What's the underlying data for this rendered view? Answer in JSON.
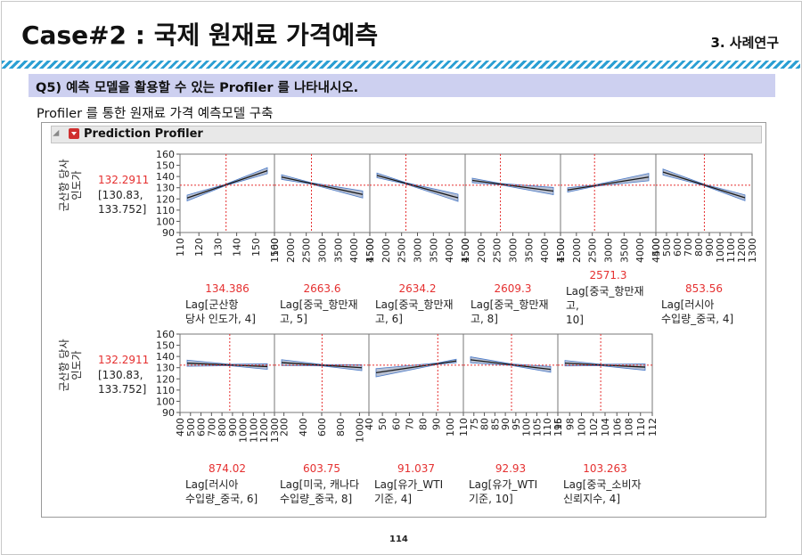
{
  "page": {
    "title": "Case#2 : 국제 원재료 가격예측",
    "section": "3. 사례연구",
    "question": "Q5) 예측 모델을 활용할 수 있는 Profiler 를 나타내시오.",
    "subtitle": "Profiler 를 통한 원재료 가격 예측모델 구축",
    "page_number": "114"
  },
  "profiler": {
    "title": "Prediction Profiler"
  },
  "chart_data": {
    "type": "line",
    "response": {
      "label": "군산항 당사 인도가",
      "value": "132.2911",
      "ci": "[130.83, 133.752]",
      "ylim": [
        90,
        160
      ],
      "yticks": [
        "160",
        "150",
        "140",
        "130",
        "120",
        "110",
        "100",
        "90"
      ]
    },
    "colors": {
      "line": "#1a1a1a",
      "band": "#b8c0d2",
      "band_edge": "#4a7ac8",
      "crosshair": "#e53030"
    },
    "factors": [
      {
        "label": [
          "Lag[군산항",
          "당사 인도가, 4]"
        ],
        "value": "134.386",
        "setting": 134.386,
        "xlim": [
          110,
          160
        ],
        "xticks": [
          "110",
          "120",
          "130",
          "140",
          "150",
          "160"
        ],
        "y": [
          120.8,
          145.2
        ],
        "row": 0
      },
      {
        "label": [
          "Lag[중국_항만재",
          "고, 5]"
        ],
        "value": "2663.6",
        "setting": 2663.6,
        "xlim": [
          1500,
          4500
        ],
        "xticks": [
          "1500",
          "2000",
          "2500",
          "3000",
          "3500",
          "4000",
          "4500"
        ],
        "y": [
          139.5,
          124.0
        ],
        "row": 0
      },
      {
        "label": [
          "Lag[중국_항만재",
          "고, 6]"
        ],
        "value": "2634.2",
        "setting": 2634.2,
        "xlim": [
          1500,
          4500
        ],
        "xticks": [
          "1500",
          "2000",
          "2500",
          "3000",
          "3500",
          "4000",
          "4500"
        ],
        "y": [
          141.0,
          121.0
        ],
        "row": 0
      },
      {
        "label": [
          "Lag[중국_항만재",
          "고, 8]"
        ],
        "value": "2609.3",
        "setting": 2609.3,
        "xlim": [
          1500,
          4500
        ],
        "xticks": [
          "1500",
          "2000",
          "2500",
          "3000",
          "3500",
          "4000",
          "4500"
        ],
        "y": [
          136.5,
          127.0
        ],
        "row": 0
      },
      {
        "label": [
          "Lag[중국_항만재",
          "고,",
          "10]"
        ],
        "value": "2571.3",
        "setting": 2571.3,
        "xlim": [
          1500,
          4500
        ],
        "xticks": [
          "1500",
          "2000",
          "2500",
          "3000",
          "3500",
          "4000",
          "4500"
        ],
        "y": [
          128.0,
          139.5
        ],
        "row": 0
      },
      {
        "label": [
          "Lag[러시아",
          "수입량_중국, 4]"
        ],
        "value": "853.56",
        "setting": 853.56,
        "xlim": [
          400,
          1300
        ],
        "xticks": [
          "400",
          "500",
          "600",
          "700",
          "800",
          "900",
          "1000",
          "1100",
          "1200",
          "1300"
        ],
        "y": [
          144.0,
          121.0
        ],
        "row": 0
      },
      {
        "label": [
          "Lag[러시아",
          "수입량_중국, 6]"
        ],
        "value": "874.02",
        "setting": 874.02,
        "xlim": [
          400,
          1300
        ],
        "xticks": [
          "400",
          "500",
          "600",
          "700",
          "800",
          "900",
          "1000",
          "1100",
          "1200",
          "1300"
        ],
        "y": [
          134.0,
          131.0
        ],
        "row": 1
      },
      {
        "label": [
          "Lag[미국, 캐나다",
          "수입량_중국, 8]"
        ],
        "value": "603.75",
        "setting": 603.75,
        "xlim": [
          100,
          1100
        ],
        "xticks": [
          "200",
          "400",
          "600",
          "800",
          "1000"
        ],
        "y": [
          134.5,
          130.0
        ],
        "row": 1
      },
      {
        "label": [
          "Lag[유가_WTI",
          "기준, 4]"
        ],
        "value": "91.037",
        "setting": 91.037,
        "xlim": [
          40,
          110
        ],
        "xticks": [
          "40",
          "50",
          "60",
          "70",
          "80",
          "90",
          "100",
          "110"
        ],
        "y": [
          125.5,
          136.0
        ],
        "row": 1
      },
      {
        "label": [
          "Lag[유가_WTI",
          "기준, 10]"
        ],
        "value": "92.93",
        "setting": 92.93,
        "xlim": [
          70,
          115
        ],
        "xticks": [
          "75",
          "80",
          "85",
          "90",
          "95",
          "100",
          "105",
          "110",
          "115"
        ],
        "y": [
          137.0,
          128.5
        ],
        "row": 1
      },
      {
        "label": [
          "Lag[중국_소비자",
          "신뢰지수, 4]"
        ],
        "value": "103.263",
        "setting": 103.263,
        "xlim": [
          96,
          112
        ],
        "xticks": [
          "96",
          "98",
          "100",
          "102",
          "104",
          "106",
          "108",
          "110",
          "112"
        ],
        "y": [
          134.0,
          130.5
        ],
        "row": 1
      }
    ]
  }
}
